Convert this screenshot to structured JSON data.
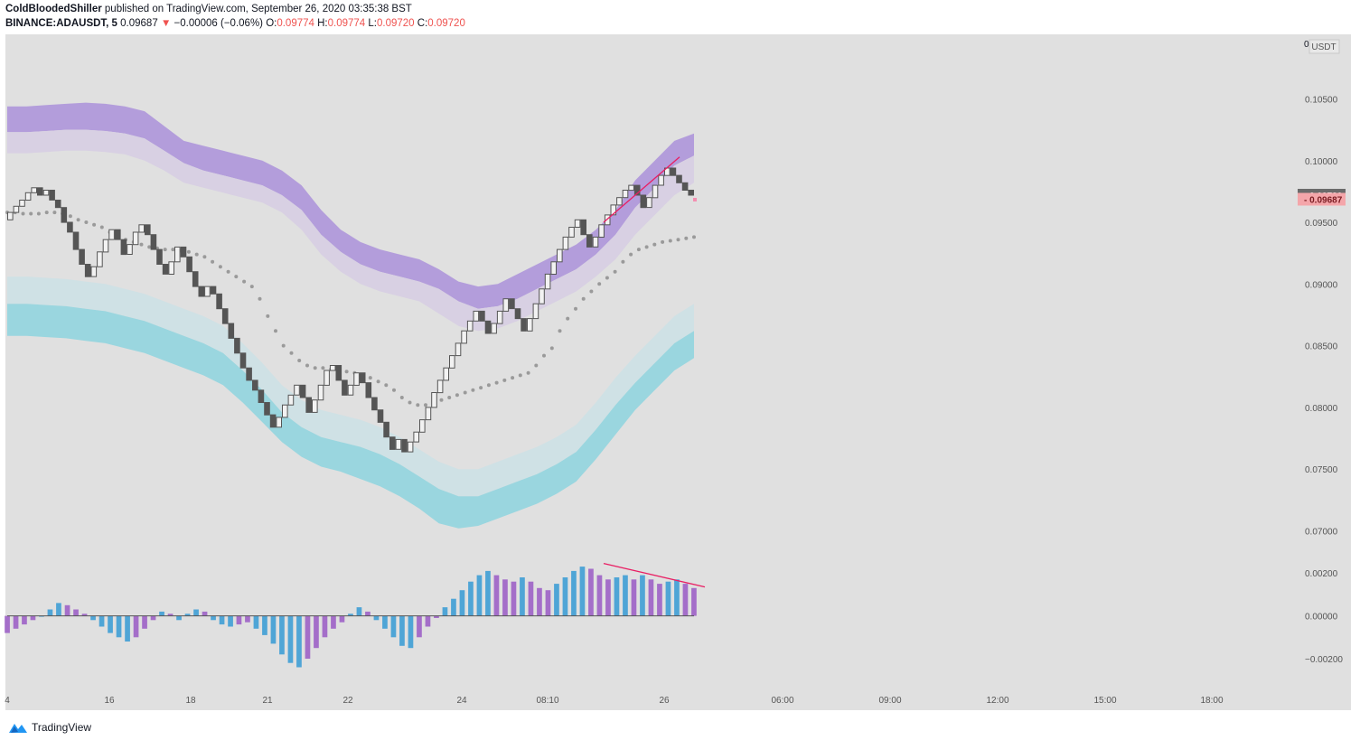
{
  "header": {
    "author": "ColdBloodedShiller",
    "published_text": " published on TradingView.com, September 26, 2020 03:35:38 BST",
    "symbol": "BINANCE:ADAUSDT, 5",
    "last_price": "0.09687",
    "change_arrow": "▼",
    "change": "−0.00006 (−0.06%)",
    "open_label": "O:",
    "open": "0.09774",
    "high_label": "H:",
    "high": "0.09774",
    "low_label": "L:",
    "low": "0.09720",
    "close_label": "C:",
    "close": "0.09720"
  },
  "footer": {
    "brand": "TradingView",
    "logo_icon": "tradingview-logo-icon"
  },
  "colors": {
    "chart_bg": "#e0e0e0",
    "upper_band": "#b39ddb",
    "upper_band_light": "#d8d0e3",
    "lower_band": "#9ad6df",
    "lower_band_light": "#cfe1e5",
    "renko": "#555555",
    "ma": "#9a9a9a",
    "trendline": "#e91e63",
    "hist_blue": "#4fa5d6",
    "hist_purple": "#a46ec9",
    "price_tag_dark": "#6b6b6b",
    "price_tag_red": "#f4a6aa"
  },
  "chart_data": {
    "type": "line",
    "currency": "USDT",
    "x_ticks": [
      "4",
      "16",
      "18",
      "21",
      "22",
      "24",
      "08:10",
      "26",
      "06:00",
      "09:00",
      "12:00",
      "15:00",
      "18:00"
    ],
    "y_ticks": [
      "0.10500",
      "0.10000",
      "0.09500",
      "0.09000",
      "0.08500",
      "0.08000",
      "0.07500",
      "0.07000"
    ],
    "y_top_label": "0",
    "ylim": [
      0.0685,
      0.1095
    ],
    "price_tags": [
      {
        "value": 0.0972,
        "label": "0.09720",
        "style": "dark"
      },
      {
        "value": 0.09687,
        "label": "0.09687",
        "style": "red"
      }
    ],
    "renko": [
      0.0952,
      0.0958,
      0.0963,
      0.0968,
      0.0974,
      0.0978,
      0.0972,
      0.0976,
      0.0968,
      0.0962,
      0.095,
      0.0942,
      0.0928,
      0.0916,
      0.0906,
      0.0914,
      0.0926,
      0.0936,
      0.0944,
      0.0936,
      0.0924,
      0.0932,
      0.0942,
      0.0948,
      0.094,
      0.0928,
      0.0916,
      0.0908,
      0.0918,
      0.093,
      0.0922,
      0.091,
      0.0898,
      0.089,
      0.0898,
      0.0892,
      0.088,
      0.0868,
      0.0856,
      0.0844,
      0.0832,
      0.0822,
      0.0814,
      0.0804,
      0.0794,
      0.0784,
      0.0792,
      0.0802,
      0.081,
      0.0818,
      0.0808,
      0.0796,
      0.0806,
      0.0818,
      0.083,
      0.0834,
      0.0822,
      0.081,
      0.0818,
      0.0828,
      0.082,
      0.0808,
      0.0798,
      0.0788,
      0.0776,
      0.0766,
      0.0774,
      0.0764,
      0.0772,
      0.078,
      0.079,
      0.08,
      0.0812,
      0.0822,
      0.0832,
      0.0842,
      0.0852,
      0.0862,
      0.087,
      0.0878,
      0.087,
      0.086,
      0.0868,
      0.0878,
      0.0888,
      0.088,
      0.0872,
      0.0862,
      0.0872,
      0.0884,
      0.0896,
      0.0908,
      0.0918,
      0.0928,
      0.0938,
      0.0946,
      0.0952,
      0.094,
      0.093,
      0.0938,
      0.0948,
      0.0956,
      0.0964,
      0.097,
      0.0976,
      0.098,
      0.0972,
      0.0962,
      0.097,
      0.098,
      0.0988,
      0.0994,
      0.0988,
      0.0982,
      0.0976,
      0.0972
    ],
    "ma": [
      0.0958,
      0.0958,
      0.0957,
      0.0957,
      0.0957,
      0.0958,
      0.0958,
      0.0957,
      0.0955,
      0.0952,
      0.095,
      0.0948,
      0.0946,
      0.0942,
      0.0939,
      0.0936,
      0.0934,
      0.0932,
      0.093,
      0.0929,
      0.0928,
      0.0928,
      0.0927,
      0.0926,
      0.0924,
      0.0922,
      0.0918,
      0.0914,
      0.091,
      0.0906,
      0.0902,
      0.0898,
      0.0888,
      0.0874,
      0.0862,
      0.085,
      0.0844,
      0.0838,
      0.0834,
      0.0832,
      0.0832,
      0.0831,
      0.083,
      0.0829,
      0.0828,
      0.0826,
      0.0824,
      0.0821,
      0.0818,
      0.0814,
      0.0808,
      0.0804,
      0.0802,
      0.0802,
      0.0804,
      0.0806,
      0.0808,
      0.081,
      0.0812,
      0.0814,
      0.0816,
      0.0818,
      0.082,
      0.0822,
      0.0824,
      0.0826,
      0.0828,
      0.0834,
      0.0842,
      0.0848,
      0.0862,
      0.0872,
      0.088,
      0.0888,
      0.0894,
      0.09,
      0.0905,
      0.091,
      0.0918,
      0.0924,
      0.0928,
      0.093,
      0.0932,
      0.0934,
      0.0935,
      0.0936,
      0.0937,
      0.0938
    ],
    "upper_band": {
      "outer": [
        0.1044,
        0.1044,
        0.1045,
        0.1046,
        0.1047,
        0.1046,
        0.1044,
        0.104,
        0.1028,
        0.1016,
        0.1012,
        0.1008,
        0.1004,
        0.1,
        0.0992,
        0.098,
        0.096,
        0.0944,
        0.0934,
        0.0928,
        0.0924,
        0.092,
        0.0912,
        0.0902,
        0.0898,
        0.09,
        0.0908,
        0.0916,
        0.0924,
        0.0932,
        0.0944,
        0.096,
        0.0984,
        0.1,
        0.1016,
        0.1022
      ],
      "mid": [
        0.1023,
        0.1023,
        0.1024,
        0.1025,
        0.1025,
        0.1024,
        0.1022,
        0.1018,
        0.1008,
        0.0998,
        0.0992,
        0.0988,
        0.0984,
        0.098,
        0.0972,
        0.096,
        0.094,
        0.0926,
        0.0916,
        0.091,
        0.0906,
        0.0902,
        0.0896,
        0.0886,
        0.088,
        0.0882,
        0.0888,
        0.0896,
        0.0904,
        0.0912,
        0.0924,
        0.094,
        0.0962,
        0.0978,
        0.0996,
        0.1004
      ],
      "inner": [
        0.1006,
        0.1006,
        0.1007,
        0.1008,
        0.1008,
        0.1007,
        0.1005,
        0.1,
        0.0992,
        0.0982,
        0.0978,
        0.0974,
        0.097,
        0.0966,
        0.0958,
        0.0944,
        0.0924,
        0.091,
        0.09,
        0.0894,
        0.089,
        0.0886,
        0.0876,
        0.0866,
        0.0862,
        0.0864,
        0.087,
        0.0878,
        0.0886,
        0.0894,
        0.0906,
        0.092,
        0.094,
        0.0956,
        0.0972,
        0.0982
      ]
    },
    "lower_band": {
      "outer": [
        0.0906,
        0.0906,
        0.0905,
        0.0904,
        0.0902,
        0.09,
        0.0896,
        0.0892,
        0.0886,
        0.088,
        0.0874,
        0.0866,
        0.0852,
        0.0836,
        0.0818,
        0.0806,
        0.0798,
        0.0794,
        0.079,
        0.0784,
        0.0776,
        0.0766,
        0.0756,
        0.075,
        0.075,
        0.0756,
        0.0762,
        0.0768,
        0.0776,
        0.0786,
        0.0804,
        0.0824,
        0.0842,
        0.0858,
        0.0874,
        0.0884
      ],
      "mid": [
        0.0884,
        0.0884,
        0.0883,
        0.0882,
        0.088,
        0.0878,
        0.0874,
        0.087,
        0.0864,
        0.0858,
        0.0852,
        0.0844,
        0.083,
        0.0814,
        0.0796,
        0.0784,
        0.0776,
        0.0772,
        0.0768,
        0.0762,
        0.0754,
        0.0744,
        0.0734,
        0.0728,
        0.0728,
        0.0734,
        0.074,
        0.0746,
        0.0754,
        0.0764,
        0.0782,
        0.0802,
        0.082,
        0.0836,
        0.0852,
        0.0862
      ],
      "inner": [
        0.0858,
        0.0858,
        0.0857,
        0.0856,
        0.0854,
        0.0852,
        0.0848,
        0.0844,
        0.0838,
        0.0832,
        0.0826,
        0.0818,
        0.0804,
        0.0788,
        0.0772,
        0.076,
        0.0752,
        0.0748,
        0.0742,
        0.0736,
        0.0728,
        0.0718,
        0.0706,
        0.0702,
        0.0704,
        0.071,
        0.0716,
        0.0722,
        0.073,
        0.074,
        0.0758,
        0.0778,
        0.0798,
        0.0814,
        0.083,
        0.084
      ]
    },
    "trendline_price": {
      "from": 0.095,
      "to": 0.1003
    },
    "oscillator": {
      "y_ticks": [
        "0.00200",
        "0.00000",
        "−0.00200"
      ],
      "ylim": [
        -0.0028,
        0.0026
      ],
      "values": [
        -0.0008,
        -0.0006,
        -0.0004,
        -0.0002,
        0.0,
        0.0003,
        0.0006,
        0.0005,
        0.0003,
        0.0001,
        -0.0002,
        -0.0005,
        -0.0008,
        -0.001,
        -0.0012,
        -0.001,
        -0.0006,
        -0.0002,
        0.0002,
        0.0001,
        -0.0002,
        0.0001,
        0.0003,
        0.0002,
        -0.0002,
        -0.0004,
        -0.0005,
        -0.0004,
        -0.0003,
        -0.0006,
        -0.0009,
        -0.0013,
        -0.0018,
        -0.0022,
        -0.0024,
        -0.002,
        -0.0015,
        -0.001,
        -0.0006,
        -0.0003,
        0.0001,
        0.0004,
        0.0002,
        -0.0002,
        -0.0006,
        -0.001,
        -0.0014,
        -0.0015,
        -0.001,
        -0.0005,
        -0.0001,
        0.0004,
        0.0008,
        0.0012,
        0.0016,
        0.0019,
        0.0021,
        0.0019,
        0.0017,
        0.0016,
        0.0018,
        0.0016,
        0.0013,
        0.0012,
        0.0015,
        0.0018,
        0.0021,
        0.0023,
        0.0022,
        0.0019,
        0.0017,
        0.0018,
        0.0019,
        0.0017,
        0.0019,
        0.0017,
        0.0015,
        0.0016,
        0.0017,
        0.0015,
        0.0013
      ],
      "trendline": {
        "from": 0.00245,
        "to": 0.00135
      }
    }
  }
}
